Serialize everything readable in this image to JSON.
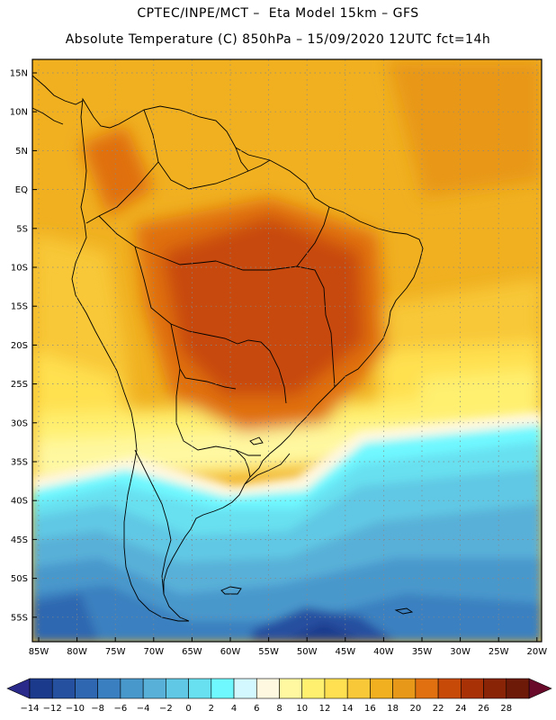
{
  "header": {
    "title_line1": "CPTEC/INPE/MCT –  Eta Model 15km – GFS",
    "title_line2": "Absolute Temperature (C) 850hPa – 15/09/2020 12UTC fct=14h"
  },
  "map": {
    "region": "South America",
    "lat_labels": [
      "15N",
      "10N",
      "5N",
      "EQ",
      "5S",
      "10S",
      "15S",
      "20S",
      "25S",
      "30S",
      "35S",
      "40S",
      "45S",
      "50S",
      "55S"
    ],
    "lon_labels": [
      "85W",
      "80W",
      "75W",
      "70W",
      "65W",
      "60W",
      "55W",
      "50W",
      "45W",
      "40W",
      "35W",
      "30W",
      "25W",
      "20W"
    ]
  },
  "colorbar": {
    "labels": [
      "-14",
      "-12",
      "-10",
      "-8",
      "-6",
      "-4",
      "-2",
      "0",
      "2",
      "4",
      "6",
      "8",
      "10",
      "12",
      "14",
      "16",
      "18",
      "20",
      "22",
      "24",
      "26",
      "28"
    ],
    "colors": [
      "#1c3a8c",
      "#2550a0",
      "#2f68b0",
      "#3a80c0",
      "#4898cc",
      "#58b0d8",
      "#60c8e4",
      "#68e0f0",
      "#70f8ff",
      "#d4f8ff",
      "#fff8e0",
      "#fff8a0",
      "#fff070",
      "#ffe050",
      "#f8c838",
      "#f0b020",
      "#e89818",
      "#e07010",
      "#c84a08",
      "#a83206",
      "#8a2406",
      "#6e1a08"
    ],
    "low_arrow_color": "#2a2a8a",
    "high_arrow_color": "#6a0a2a"
  }
}
